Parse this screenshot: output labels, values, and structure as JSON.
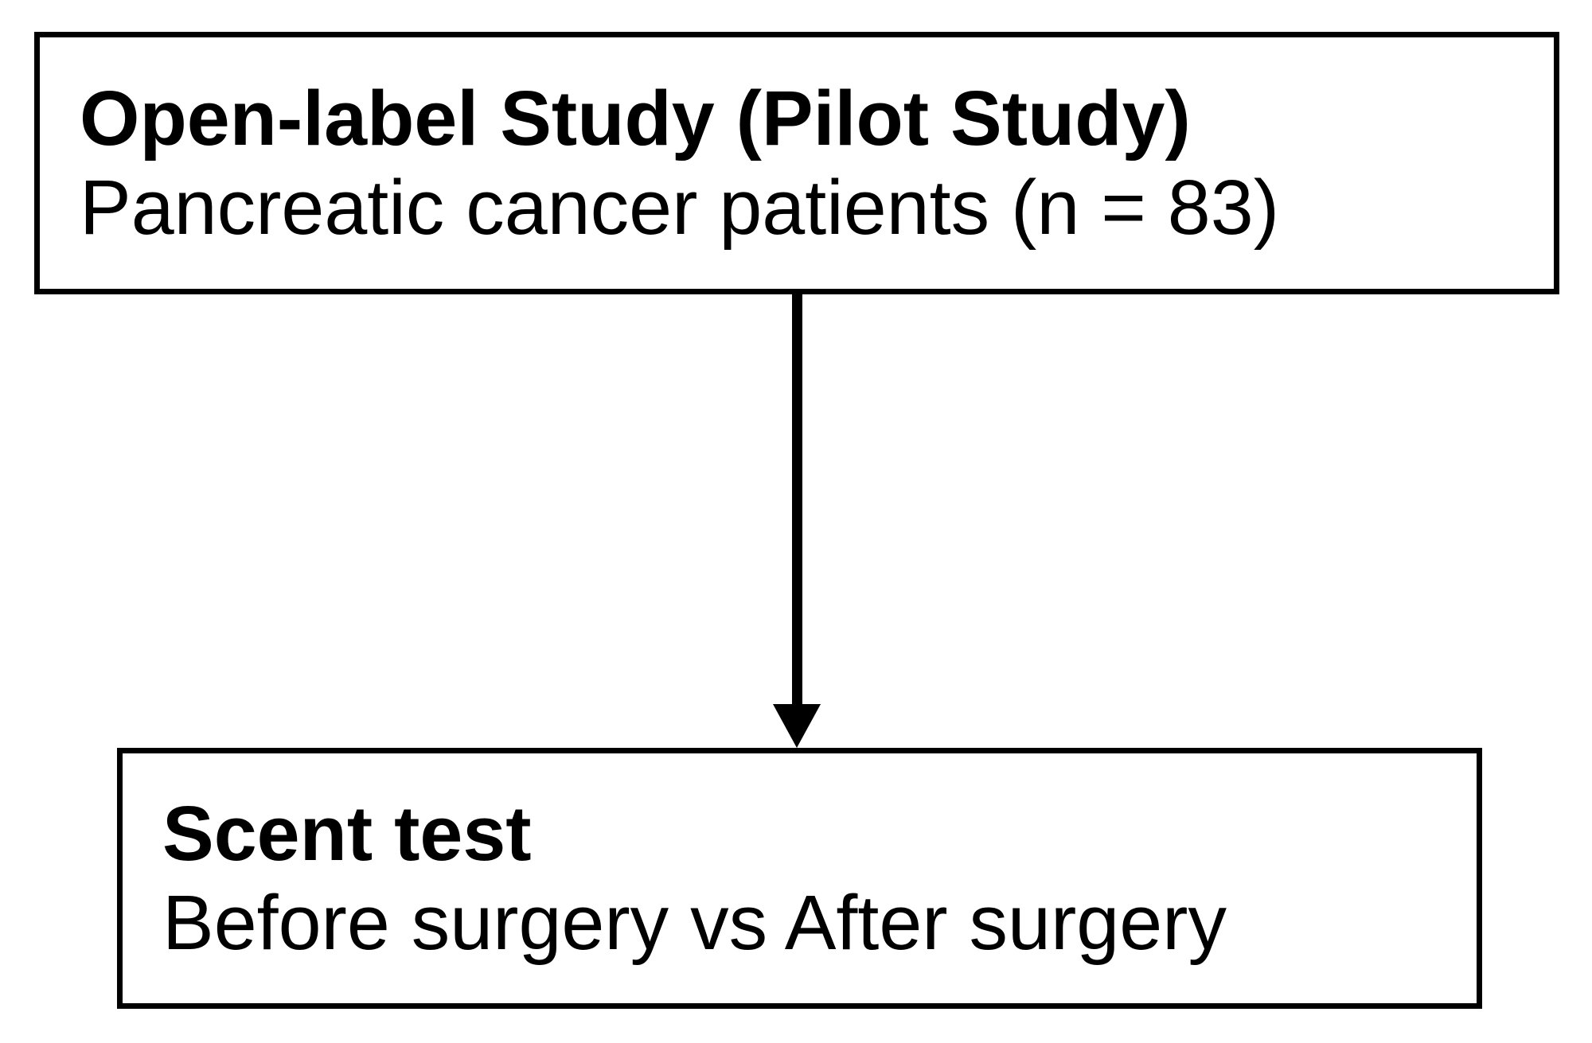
{
  "figure": {
    "type": "flowchart",
    "background_color": "#ffffff",
    "border_color": "#000000",
    "text_color": "#000000",
    "top_box": {
      "title": "Open-label Study (Pilot Study)",
      "subtitle": "Pancreatic cancer patients (n = 83)"
    },
    "connector": {
      "type": "arrow-down",
      "from": "top_box",
      "to": "bottom_box"
    },
    "bottom_box": {
      "title": "Scent test",
      "subtitle": "Before surgery vs After surgery"
    }
  }
}
